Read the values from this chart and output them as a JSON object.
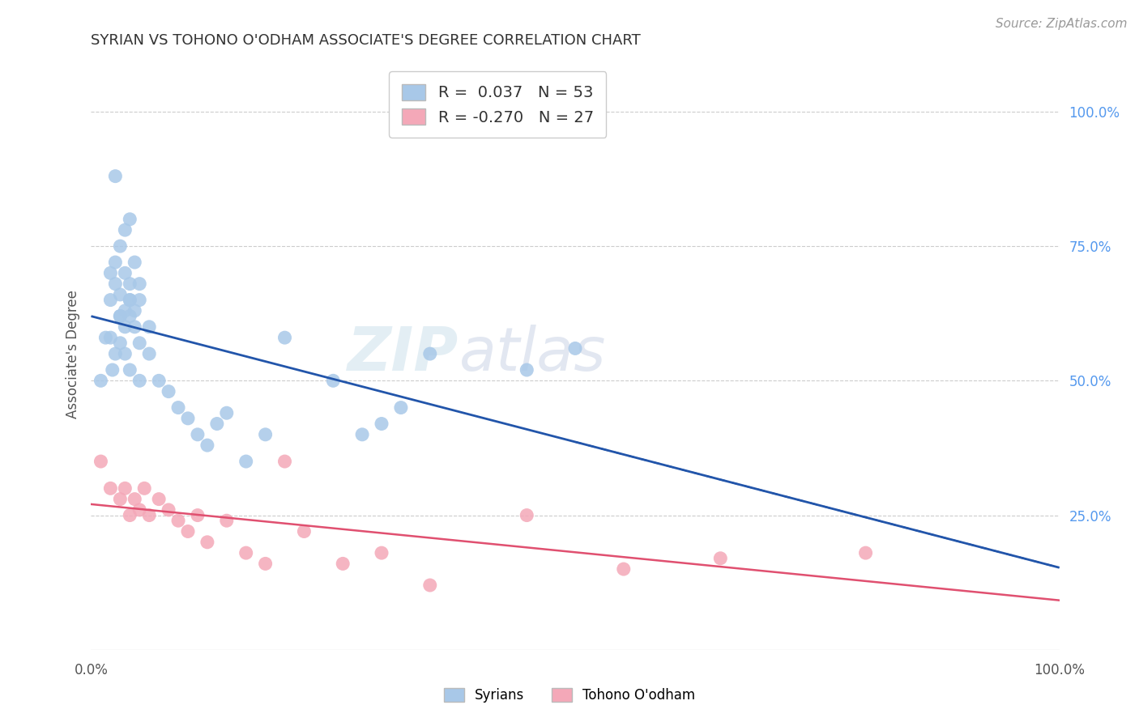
{
  "title": "SYRIAN VS TOHONO O'ODHAM ASSOCIATE'S DEGREE CORRELATION CHART",
  "source": "Source: ZipAtlas.com",
  "ylabel": "Associate's Degree",
  "r1": 0.037,
  "n1": 53,
  "r2": -0.27,
  "n2": 27,
  "blue_color": "#a8c8e8",
  "pink_color": "#f4a8b8",
  "line_blue": "#2255aa",
  "line_pink": "#e05070",
  "watermark_zip": "ZIP",
  "watermark_atlas": "atlas",
  "syrians_x": [
    1.0,
    2.2,
    2.5,
    3.5,
    4.0,
    1.5,
    2.0,
    2.0,
    2.5,
    2.5,
    3.0,
    3.0,
    3.5,
    4.0,
    3.0,
    3.5,
    4.0,
    4.5,
    2.0,
    3.0,
    4.0,
    5.0,
    2.5,
    3.5,
    4.5,
    3.0,
    4.0,
    5.0,
    3.5,
    4.5,
    5.0,
    4.0,
    6.0,
    5.0,
    6.0,
    7.0,
    8.0,
    9.0,
    10.0,
    11.0,
    12.0,
    13.0,
    14.0,
    16.0,
    18.0,
    20.0,
    25.0,
    28.0,
    30.0,
    32.0,
    35.0,
    45.0,
    50.0
  ],
  "syrians_y": [
    50.0,
    52.0,
    88.0,
    78.0,
    80.0,
    58.0,
    70.0,
    65.0,
    68.0,
    72.0,
    66.0,
    75.0,
    63.0,
    68.0,
    62.0,
    70.0,
    65.0,
    72.0,
    58.0,
    62.0,
    65.0,
    68.0,
    55.0,
    60.0,
    63.0,
    57.0,
    62.0,
    65.0,
    55.0,
    60.0,
    57.0,
    52.0,
    60.0,
    50.0,
    55.0,
    50.0,
    48.0,
    45.0,
    43.0,
    40.0,
    38.0,
    42.0,
    44.0,
    35.0,
    40.0,
    58.0,
    50.0,
    40.0,
    42.0,
    45.0,
    55.0,
    52.0,
    56.0
  ],
  "tohono_x": [
    1.0,
    2.0,
    3.0,
    3.5,
    4.0,
    4.5,
    5.0,
    5.5,
    6.0,
    7.0,
    8.0,
    9.0,
    10.0,
    11.0,
    12.0,
    14.0,
    16.0,
    18.0,
    20.0,
    22.0,
    26.0,
    30.0,
    35.0,
    45.0,
    55.0,
    65.0,
    80.0
  ],
  "tohono_y": [
    35.0,
    30.0,
    28.0,
    30.0,
    25.0,
    28.0,
    26.0,
    30.0,
    25.0,
    28.0,
    26.0,
    24.0,
    22.0,
    25.0,
    20.0,
    24.0,
    18.0,
    16.0,
    35.0,
    22.0,
    16.0,
    18.0,
    12.0,
    25.0,
    15.0,
    17.0,
    18.0
  ]
}
